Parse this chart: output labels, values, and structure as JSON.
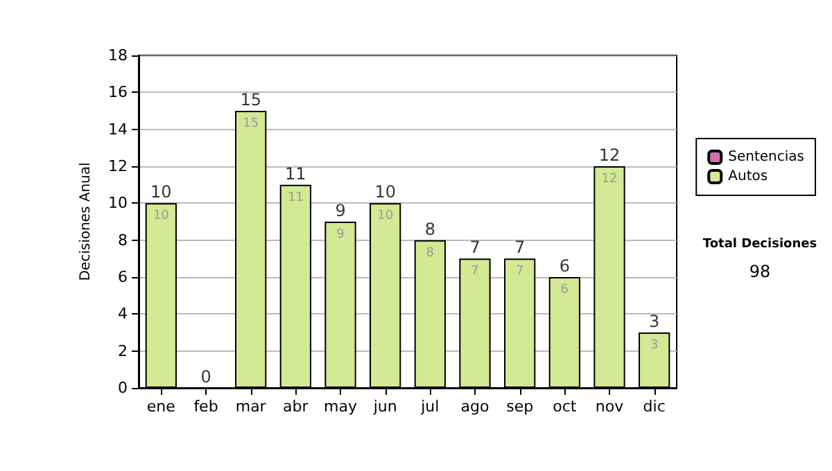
{
  "chart_data": {
    "type": "bar",
    "ylabel": "Decisiones Anual",
    "categories": [
      "ene",
      "feb",
      "mar",
      "abr",
      "may",
      "jun",
      "jul",
      "ago",
      "sep",
      "oct",
      "nov",
      "dic"
    ],
    "stacked": true,
    "series": [
      {
        "name": "Sentencias",
        "color": "#d070b0",
        "values": [
          0,
          0,
          0,
          0,
          0,
          0,
          0,
          0,
          0,
          0,
          0,
          0
        ]
      },
      {
        "name": "Autos",
        "color": "#d4e993",
        "values": [
          10,
          0,
          15,
          11,
          9,
          10,
          8,
          7,
          7,
          6,
          12,
          3
        ],
        "value_labels": [
          "10",
          null,
          "15",
          "11",
          "9",
          "10",
          "8",
          "7",
          "7",
          "6",
          "12",
          "3"
        ]
      }
    ],
    "totals": [
      "10",
      "0",
      "15",
      "11",
      "9",
      "10",
      "8",
      "7",
      "7",
      "6",
      "12",
      "3"
    ],
    "ylim": [
      0,
      18
    ],
    "yticks": [
      0,
      2,
      4,
      6,
      8,
      10,
      12,
      14,
      16,
      18
    ],
    "grid": "y",
    "legend": "right",
    "annotations": [
      "Total Decisiones",
      "98"
    ]
  }
}
